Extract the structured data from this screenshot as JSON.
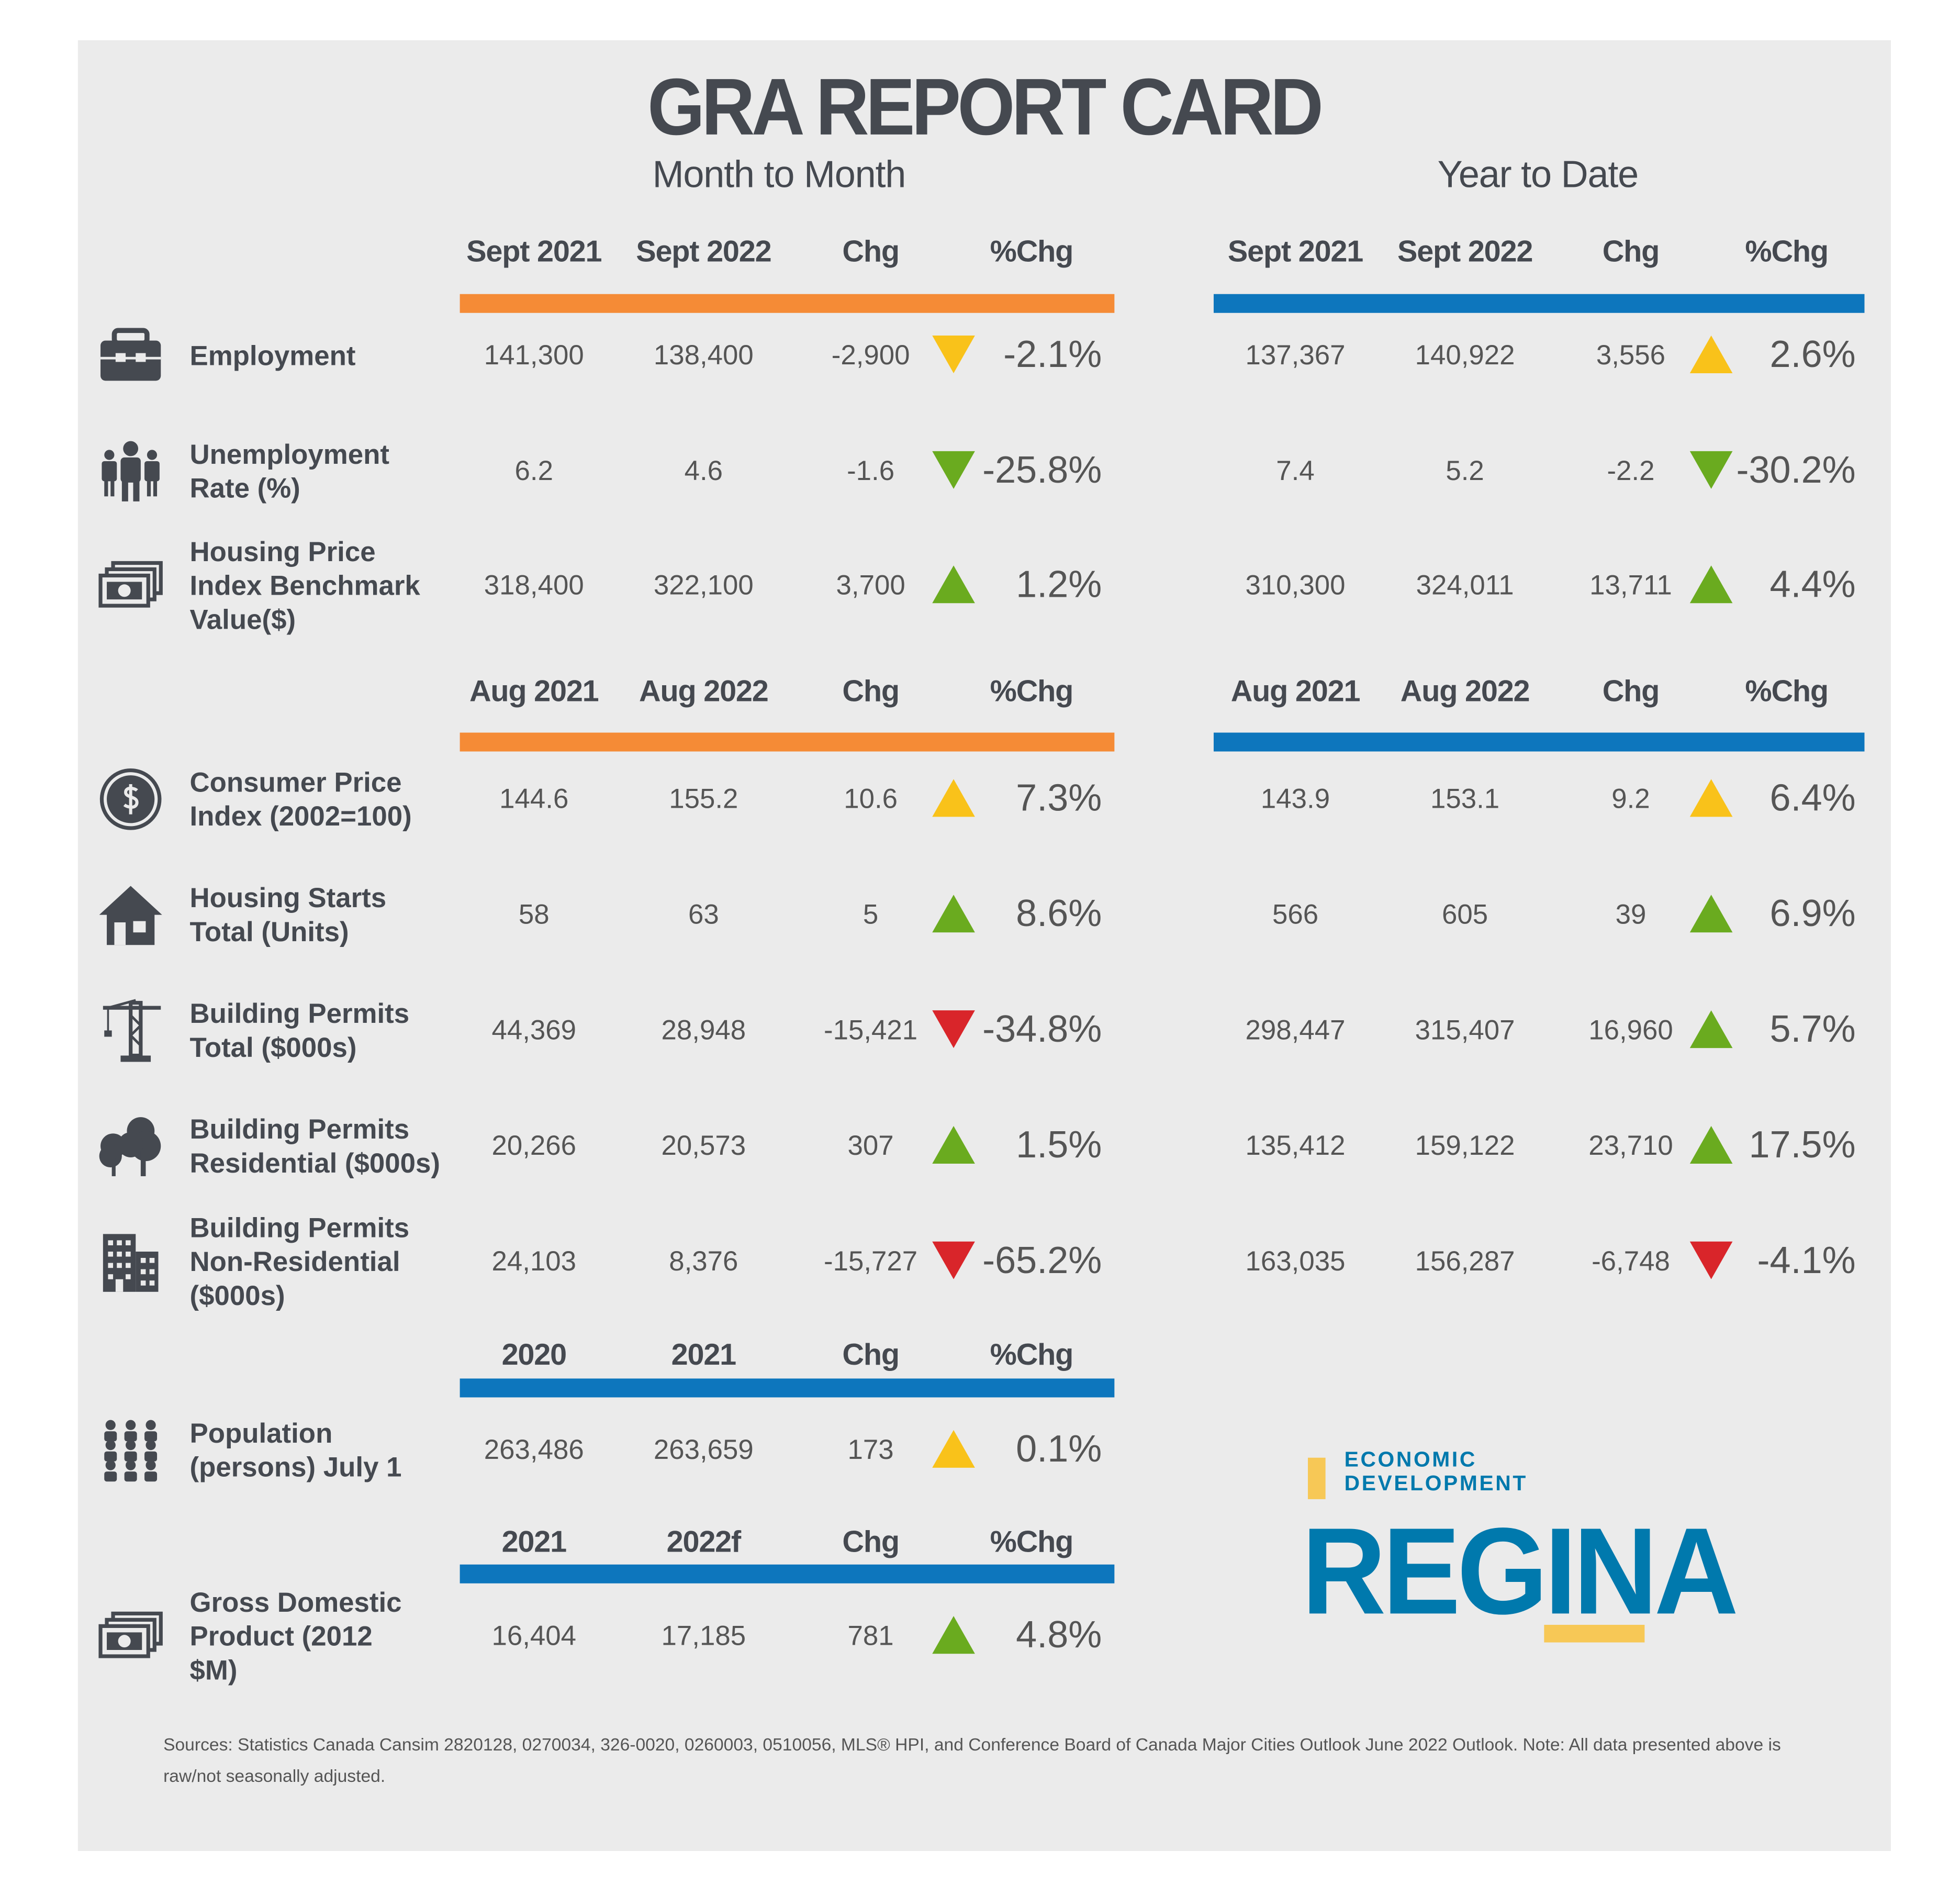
{
  "title": "GRA REPORT CARD",
  "month_to_month_title": "Month to Month",
  "year_to_date_title": "Year to Date",
  "colors": {
    "orange": "#f58b36",
    "blue": "#0d76bd",
    "up_yellow": "#f9c21a",
    "up_green": "#6aab1f",
    "down_green": "#6aab1f",
    "down_yellow": "#f9c21a",
    "down_red": "#d9252a"
  },
  "sections": [
    {
      "bar_color": "#f58b36",
      "ytd_bar_color": "#0d76bd",
      "mtm_headers": [
        "Sept 2021",
        "Sept 2022",
        "Chg",
        "%Chg"
      ],
      "ytd_headers": [
        "Sept 2021",
        "Sept 2022",
        "Chg",
        "%Chg"
      ],
      "rows": [
        {
          "icon": "briefcase-icon",
          "label": [
            "Employment"
          ],
          "mtm": {
            "a": "141,300",
            "b": "138,400",
            "chg": "-2,900",
            "dir": "down",
            "color": "#f9c21a",
            "pct": "-2.1%"
          },
          "ytd": {
            "a": "137,367",
            "b": "140,922",
            "chg": "3,556",
            "dir": "up",
            "color": "#f9c21a",
            "pct": "2.6%"
          }
        },
        {
          "icon": "people-icon",
          "label": [
            "Unemployment",
            "Rate (%)"
          ],
          "mtm": {
            "a": "6.2",
            "b": "4.6",
            "chg": "-1.6",
            "dir": "down",
            "color": "#6aab1f",
            "pct": "-25.8%"
          },
          "ytd": {
            "a": "7.4",
            "b": "5.2",
            "chg": "-2.2",
            "dir": "down",
            "color": "#6aab1f",
            "pct": "-30.2%"
          }
        },
        {
          "icon": "money-icon",
          "label": [
            "Housing Price",
            "Index Benchmark",
            "Value($)"
          ],
          "mtm": {
            "a": "318,400",
            "b": "322,100",
            "chg": "3,700",
            "dir": "up",
            "color": "#6aab1f",
            "pct": "1.2%"
          },
          "ytd": {
            "a": "310,300",
            "b": "324,011",
            "chg": "13,711",
            "dir": "up",
            "color": "#6aab1f",
            "pct": "4.4%"
          }
        }
      ]
    },
    {
      "bar_color": "#f58b36",
      "ytd_bar_color": "#0d76bd",
      "mtm_headers": [
        "Aug 2021",
        "Aug 2022",
        "Chg",
        "%Chg"
      ],
      "ytd_headers": [
        "Aug 2021",
        "Aug 2022",
        "Chg",
        "%Chg"
      ],
      "rows": [
        {
          "icon": "dollar-icon",
          "label": [
            "Consumer Price",
            "Index (2002=100)"
          ],
          "mtm": {
            "a": "144.6",
            "b": "155.2",
            "chg": "10.6",
            "dir": "up",
            "color": "#f9c21a",
            "pct": "7.3%"
          },
          "ytd": {
            "a": "143.9",
            "b": "153.1",
            "chg": "9.2",
            "dir": "up",
            "color": "#f9c21a",
            "pct": "6.4%"
          }
        },
        {
          "icon": "house-icon",
          "label": [
            "Housing Starts",
            "Total (Units)"
          ],
          "mtm": {
            "a": "58",
            "b": "63",
            "chg": "5",
            "dir": "up",
            "color": "#6aab1f",
            "pct": "8.6%"
          },
          "ytd": {
            "a": "566",
            "b": "605",
            "chg": "39",
            "dir": "up",
            "color": "#6aab1f",
            "pct": "6.9%"
          }
        },
        {
          "icon": "crane-icon",
          "label": [
            "Building Permits",
            "Total ($000s)"
          ],
          "mtm": {
            "a": "44,369",
            "b": "28,948",
            "chg": "-15,421",
            "dir": "down",
            "color": "#d9252a",
            "pct": "-34.8%"
          },
          "ytd": {
            "a": "298,447",
            "b": "315,407",
            "chg": "16,960",
            "dir": "up",
            "color": "#6aab1f",
            "pct": "5.7%"
          }
        },
        {
          "icon": "trees-icon",
          "label": [
            "Building Permits",
            "Residential ($000s)"
          ],
          "mtm": {
            "a": "20,266",
            "b": "20,573",
            "chg": "307",
            "dir": "up",
            "color": "#6aab1f",
            "pct": "1.5%"
          },
          "ytd": {
            "a": "135,412",
            "b": "159,122",
            "chg": "23,710",
            "dir": "up",
            "color": "#6aab1f",
            "pct": "17.5%"
          }
        },
        {
          "icon": "buildings-icon",
          "label": [
            "Building Permits",
            "Non-Residential",
            "($000s)"
          ],
          "mtm": {
            "a": "24,103",
            "b": "8,376",
            "chg": "-15,727",
            "dir": "down",
            "color": "#d9252a",
            "pct": "-65.2%"
          },
          "ytd": {
            "a": "163,035",
            "b": "156,287",
            "chg": "-6,748",
            "dir": "down",
            "color": "#d9252a",
            "pct": "-4.1%"
          }
        }
      ]
    },
    {
      "bar_color": "#0d76bd",
      "mtm_headers": [
        "2020",
        "2021",
        "Chg",
        "%Chg"
      ],
      "rows": [
        {
          "icon": "population-icon",
          "label": [
            "Population",
            "(persons) July 1"
          ],
          "mtm": {
            "a": "263,486",
            "b": "263,659",
            "chg": "173",
            "dir": "up",
            "color": "#f9c21a",
            "pct": "0.1%"
          }
        }
      ]
    },
    {
      "bar_color": "#0d76bd",
      "mtm_headers": [
        "2021",
        "2022f",
        "Chg",
        "%Chg"
      ],
      "rows": [
        {
          "icon": "money-icon",
          "label": [
            "Gross Domestic",
            "Product (2012",
            "$M)"
          ],
          "mtm": {
            "a": "16,404",
            "b": "17,185",
            "chg": "781",
            "dir": "up",
            "color": "#6aab1f",
            "pct": "4.8%"
          }
        }
      ]
    }
  ],
  "logo": {
    "line1": "ECONOMIC",
    "line2": "DEVELOPMENT",
    "big": "REGINA"
  },
  "footer": "Sources: Statistics Canada Cansim 2820128, 0270034, 326-0020, 0260003, 0510056, MLS® HPI, and Conference Board of Canada Major Cities Outlook June 2022 Outlook. Note: All data presented above is raw/not seasonally adjusted."
}
